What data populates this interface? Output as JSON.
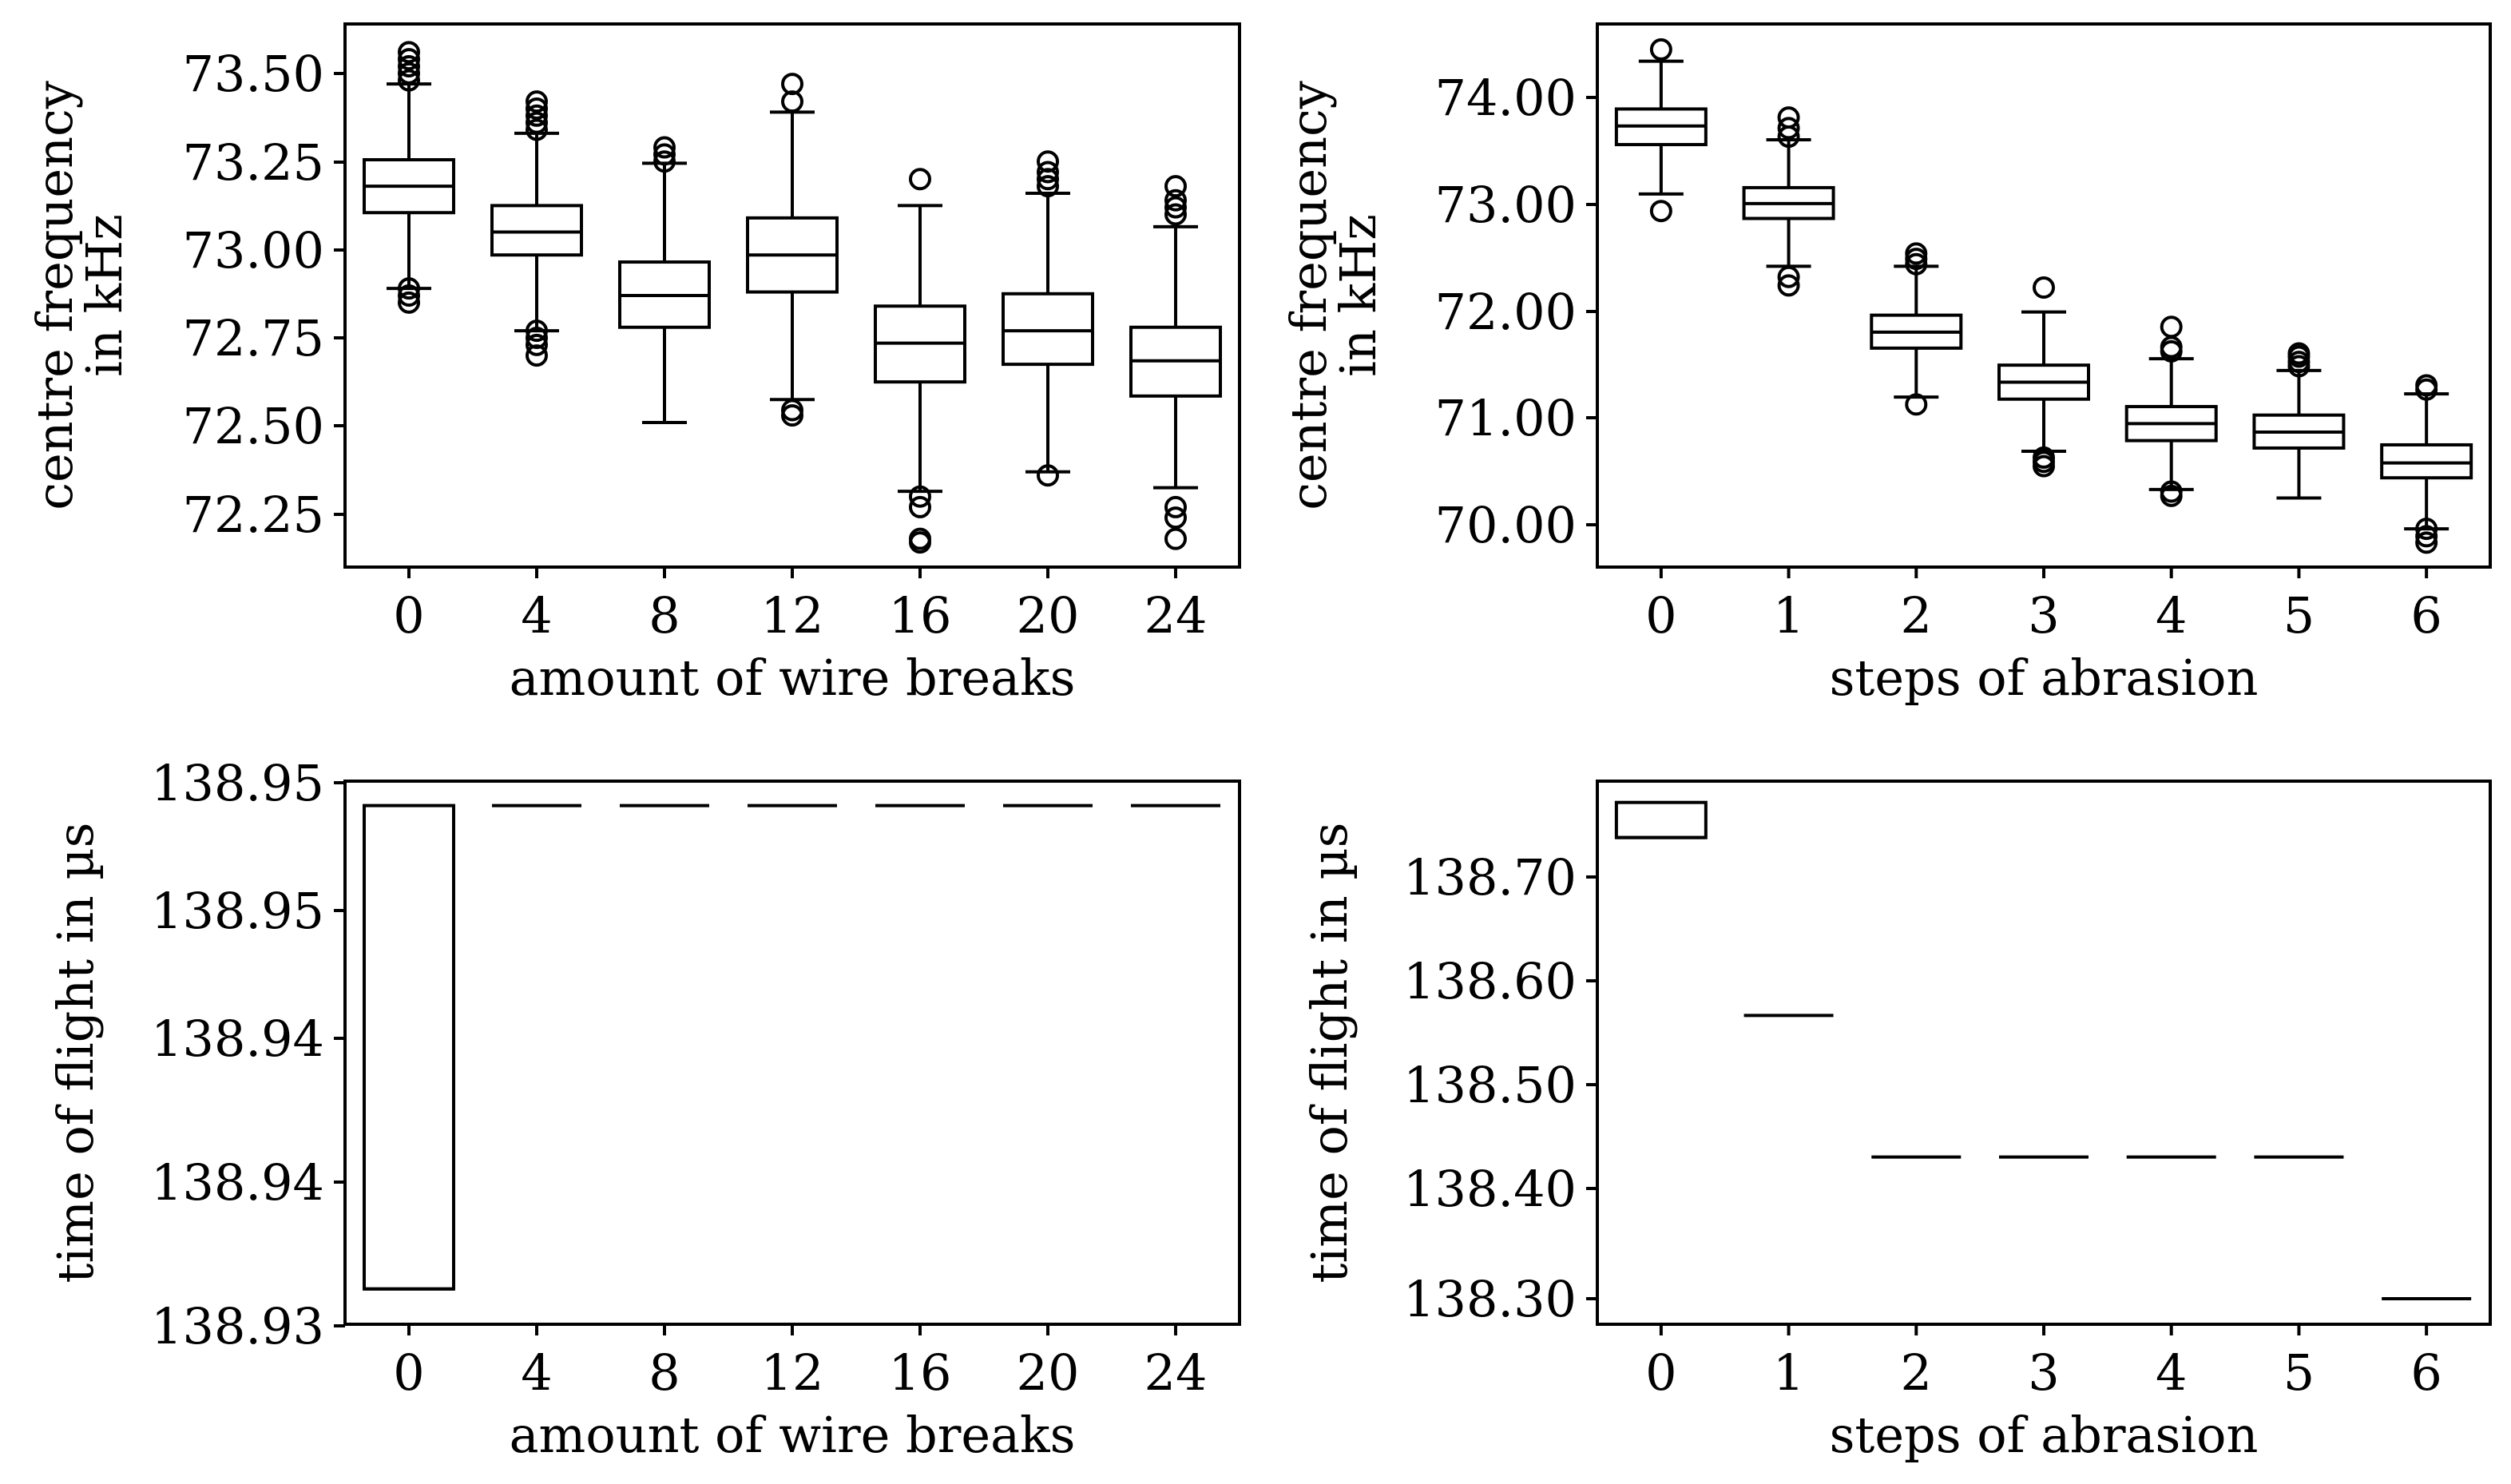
{
  "chart_data": [
    {
      "type": "box",
      "id": "p1",
      "xlabel": "amount of wire breaks",
      "ylabel": [
        "centre frequency",
        "in kHz"
      ],
      "categories": [
        "0",
        "4",
        "8",
        "12",
        "16",
        "20",
        "24"
      ],
      "y_ticks": [
        "73.50",
        "73.25",
        "73.00",
        "72.75",
        "72.50",
        "72.25"
      ],
      "ylim": [
        72.1,
        73.64
      ],
      "boxes": [
        {
          "q1": 73.105,
          "median": 73.18,
          "q3": 73.255,
          "whislo": 72.89,
          "whishi": 73.47,
          "fliers": [
            72.85,
            72.87,
            72.89,
            73.48,
            73.5,
            73.52,
            73.54,
            73.56
          ]
        },
        {
          "q1": 72.985,
          "median": 73.05,
          "q3": 73.125,
          "whislo": 72.77,
          "whishi": 73.33,
          "fliers": [
            72.7,
            72.73,
            72.75,
            72.77,
            73.34,
            73.36,
            73.38,
            73.4,
            73.42
          ]
        },
        {
          "q1": 72.78,
          "median": 72.87,
          "q3": 72.965,
          "whislo": 72.51,
          "whishi": 73.245,
          "fliers": [
            73.25,
            73.27,
            73.29
          ]
        },
        {
          "q1": 72.88,
          "median": 72.985,
          "q3": 73.09,
          "whislo": 72.575,
          "whishi": 73.39,
          "fliers": [
            72.53,
            72.545,
            73.42,
            73.47
          ]
        },
        {
          "q1": 72.625,
          "median": 72.735,
          "q3": 72.84,
          "whislo": 72.315,
          "whishi": 73.125,
          "fliers": [
            72.17,
            72.18,
            72.27,
            72.3,
            73.2
          ]
        },
        {
          "q1": 72.675,
          "median": 72.77,
          "q3": 72.875,
          "whislo": 72.37,
          "whishi": 73.16,
          "fliers": [
            72.36,
            73.18,
            73.2,
            73.22,
            73.25
          ]
        },
        {
          "q1": 72.585,
          "median": 72.685,
          "q3": 72.78,
          "whislo": 72.325,
          "whishi": 73.065,
          "fliers": [
            72.18,
            72.24,
            72.27,
            73.1,
            73.12,
            73.14,
            73.18
          ]
        }
      ]
    },
    {
      "type": "box",
      "id": "p2",
      "xlabel": "steps of abrasion",
      "ylabel": [
        "centre frequency",
        "in kHz"
      ],
      "categories": [
        "0",
        "1",
        "2",
        "3",
        "4",
        "5",
        "6"
      ],
      "y_ticks": [
        "74.00",
        "73.00",
        "72.00",
        "71.00",
        "70.00"
      ],
      "ylim": [
        69.57,
        74.68
      ],
      "boxes": [
        {
          "q1": 73.545,
          "median": 73.72,
          "q3": 73.88,
          "whislo": 73.08,
          "whishi": 74.33,
          "fliers": [
            72.92,
            74.44
          ]
        },
        {
          "q1": 72.85,
          "median": 72.99,
          "q3": 73.14,
          "whislo": 72.4,
          "whishi": 73.59,
          "fliers": [
            72.22,
            72.3,
            73.62,
            73.7,
            73.8
          ]
        },
        {
          "q1": 71.63,
          "median": 71.78,
          "q3": 71.94,
          "whislo": 71.17,
          "whishi": 72.4,
          "fliers": [
            71.1,
            72.42,
            72.47,
            72.52
          ]
        },
        {
          "q1": 71.15,
          "median": 71.31,
          "q3": 71.47,
          "whislo": 70.66,
          "whishi": 71.97,
          "fliers": [
            70.52,
            70.56,
            70.6,
            72.2
          ]
        },
        {
          "q1": 70.76,
          "median": 70.92,
          "q3": 71.08,
          "whislo": 70.3,
          "whishi": 71.53,
          "fliers": [
            70.24,
            70.28,
            71.6,
            71.64,
            71.83
          ]
        },
        {
          "q1": 70.69,
          "median": 70.84,
          "q3": 71.0,
          "whislo": 70.22,
          "whishi": 71.42,
          "fliers": [
            71.46,
            71.5,
            71.55,
            71.58
          ]
        },
        {
          "q1": 70.41,
          "median": 70.55,
          "q3": 70.72,
          "whislo": 69.93,
          "whishi": 71.2,
          "fliers": [
            69.8,
            69.86,
            69.93,
            71.24,
            71.28
          ]
        }
      ]
    },
    {
      "type": "box",
      "id": "p3",
      "xlabel": "amount of wire breaks",
      "ylabel": [
        "time of flight in µs"
      ],
      "categories": [
        "0",
        "4",
        "8",
        "12",
        "16",
        "20",
        "24"
      ],
      "y_ticks": [
        "138.95",
        "138.95",
        "138.94",
        "138.94",
        "138.93"
      ],
      "ylim": [
        138.93,
        138.95
      ],
      "boxes": [
        {
          "q1": 138.9313,
          "median": 138.9313,
          "q3": 138.9491,
          "whislo": 138.9313,
          "whishi": 138.9491,
          "fliers": []
        },
        {
          "q1": 138.9491,
          "median": 138.9491,
          "q3": 138.9491,
          "whislo": 138.9491,
          "whishi": 138.9491,
          "fliers": []
        },
        {
          "q1": 138.9491,
          "median": 138.9491,
          "q3": 138.9491,
          "whislo": 138.9491,
          "whishi": 138.9491,
          "fliers": []
        },
        {
          "q1": 138.9491,
          "median": 138.9491,
          "q3": 138.9491,
          "whislo": 138.9491,
          "whishi": 138.9491,
          "fliers": []
        },
        {
          "q1": 138.9491,
          "median": 138.9491,
          "q3": 138.9491,
          "whislo": 138.9491,
          "whishi": 138.9491,
          "fliers": []
        },
        {
          "q1": 138.9491,
          "median": 138.9491,
          "q3": 138.9491,
          "whislo": 138.9491,
          "whishi": 138.9491,
          "fliers": []
        },
        {
          "q1": 138.9491,
          "median": 138.9491,
          "q3": 138.9491,
          "whislo": 138.9491,
          "whishi": 138.9491,
          "fliers": []
        }
      ]
    },
    {
      "type": "box",
      "id": "p4",
      "xlabel": "steps of abrasion",
      "ylabel": [
        "time of flight in µs"
      ],
      "categories": [
        "0",
        "1",
        "2",
        "3",
        "4",
        "5",
        "6"
      ],
      "y_ticks": [
        "138.70",
        "138.60",
        "138.50",
        "138.40",
        "138.30"
      ],
      "ylim": [
        138.278,
        138.788
      ],
      "boxes": [
        {
          "q1": 138.735,
          "median": 138.735,
          "q3": 138.768,
          "whislo": 138.735,
          "whishi": 138.768,
          "fliers": []
        },
        {
          "q1": 138.568,
          "median": 138.568,
          "q3": 138.568,
          "whislo": 138.568,
          "whishi": 138.568,
          "fliers": []
        },
        {
          "q1": 138.435,
          "median": 138.435,
          "q3": 138.435,
          "whislo": 138.435,
          "whishi": 138.435,
          "fliers": []
        },
        {
          "q1": 138.435,
          "median": 138.435,
          "q3": 138.435,
          "whislo": 138.435,
          "whishi": 138.435,
          "fliers": []
        },
        {
          "q1": 138.435,
          "median": 138.435,
          "q3": 138.435,
          "whislo": 138.435,
          "whishi": 138.435,
          "fliers": []
        },
        {
          "q1": 138.435,
          "median": 138.435,
          "q3": 138.435,
          "whislo": 138.435,
          "whishi": 138.435,
          "fliers": []
        },
        {
          "q1": 138.302,
          "median": 138.302,
          "q3": 138.302,
          "whislo": 138.302,
          "whishi": 138.302,
          "fliers": []
        }
      ]
    }
  ]
}
